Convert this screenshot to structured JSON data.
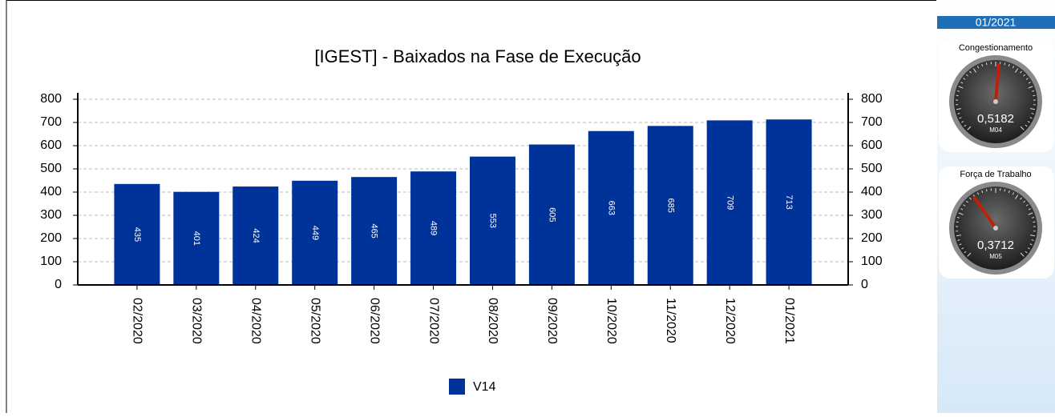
{
  "chart_data": {
    "type": "bar",
    "title": "[IGEST]  - Baixados na Fase de Execução",
    "categories": [
      "02/2020",
      "03/2020",
      "04/2020",
      "05/2020",
      "06/2020",
      "07/2020",
      "08/2020",
      "09/2020",
      "10/2020",
      "11/2020",
      "12/2020",
      "01/2021"
    ],
    "series": [
      {
        "name": "V14",
        "color": "#003399",
        "values": [
          435,
          401,
          424,
          449,
          465,
          489,
          553,
          605,
          663,
          685,
          709,
          713
        ]
      }
    ],
    "ylim": [
      0,
      800
    ],
    "yticks": [
      0,
      100,
      200,
      300,
      400,
      500,
      600,
      700,
      800
    ],
    "y2lim": [
      0,
      800
    ],
    "y2ticks": [
      0,
      100,
      200,
      300,
      400,
      500,
      600,
      700,
      800
    ],
    "grid": true,
    "legend": "bottom"
  },
  "sidebar": {
    "period": "01/2021",
    "gauges": [
      {
        "label": "Congestionamento",
        "value": 0.5182,
        "value_label": "0,5182",
        "code": "M04",
        "min": 0,
        "max": 1
      },
      {
        "label": "Força de Trabalho",
        "value": 0.3712,
        "value_label": "0,3712",
        "code": "M05",
        "min": 0,
        "max": 1
      }
    ]
  }
}
